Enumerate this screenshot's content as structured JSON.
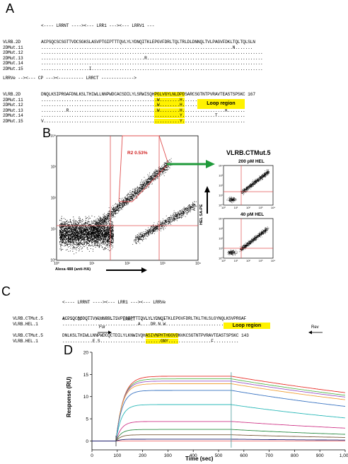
{
  "panelA": {
    "label": "A",
    "header1": "<---- LRRNT ----><--- LRR1 ---><--- LRRV1 ---",
    "block1": [
      {
        "name": "VLRB.2D",
        "seq": "ACPSQCSCSGTTVDCSGKSLASVPTGIPTTTQVLYLYDNQITKLEPGVFDRLTQLTRLDLDNNQLTVLPAGVFDKLTQLTQLSLN"
      },
      {
        "name": "2DMut.11",
        "seq": "............................................................................N......."
      },
      {
        "name": "2DMut.12",
        "seq": "........................................................................................"
      },
      {
        "name": "2DMut.13",
        "seq": ".........................................R.............................................."
      },
      {
        "name": "2DMut.14",
        "seq": "........................................................................................"
      },
      {
        "name": "2DMut.15",
        "seq": "...................I...................................................................."
      }
    ],
    "header2": "LRRVe --><--- CP ---><---------- LRRCT ------------->",
    "block2": [
      {
        "name": "VLRB.2D",
        "pre": "DNQLKSIPRGAFDNLKSLTHIWLLNNPWDCACSDILYLSRWISQH",
        "loop": "PGLVGYLNLDPD",
        "post": "SARCSGTNTPVRAVTEASTSPSKC 167"
      },
      {
        "name": "2DMut.11",
        "pre": ".............................................",
        "loop": ".W........H.",
        "post": "........................"
      },
      {
        "name": "2DMut.12",
        "pre": ".............................................",
        "loop": ".W........H.",
        "post": "........................"
      },
      {
        "name": "2DMut.13",
        "pre": "..........R..................................",
        "loop": ".W........H.",
        "post": "................K......."
      },
      {
        "name": "2DMut.14",
        "pre": ".............................................",
        "loop": "..........Y.",
        "post": "............T..........."
      },
      {
        "name": "2DMut.15",
        "pre": "V............................................",
        "loop": "..........Y.",
        "post": "........................"
      }
    ],
    "loop_label": "Loop region"
  },
  "panelB": {
    "label": "B",
    "gate_label": "R2 0.53%",
    "xlabel": "Alexa 488 (anti-HA)",
    "ylabel": "HEL SA-PE",
    "clone_title": "VLRB.CTMut.5",
    "sub1_title": "200 pM HEL",
    "sub2_title": "40 pM HEL",
    "main_ticks": [
      "10⁰",
      "10¹",
      "10²",
      "10³",
      "10⁴"
    ],
    "sub_ticks": [
      "10⁰",
      "10¹",
      "10²",
      "10³",
      "10⁴"
    ]
  },
  "panelC": {
    "label": "C",
    "header1": "<---- LRRNT ----><--- LRR1 ---><--- LRRVe",
    "row1": [
      {
        "name": "VLRB.CTMut.5",
        "seq": "ACPSQCSCDQTTVYCHNRRLTSVPTGIPTTTQVLYLYDNQITKLEPGVFDRLTKLTHLSLGYNQLKSVPRGAF"
      },
      {
        "name": "VLRB.HEL.1",
        "seq": "..............................A....DR.N.W............................"
      }
    ],
    "header2": "<---- CP ----><-------- LRRCT ---------->",
    "row2": [
      {
        "name": "VLRB.CTMut.5",
        "pre": "DNLKSLTHIWLLNNPWDCQCTDILYLKNWIVQH",
        "loop": "ASIVNPHTHGGVD",
        "post": "NVKCSGTNTPVRAVTEASTSPSKC 143"
      },
      {
        "name": "VLRB.HEL.1",
        "pre": "............E.S..................",
        "loop": "......GNY....",
        "post": ".............F.........."
      }
    ],
    "loop_label": "Loop region",
    "for_label": "For",
    "rev_label": "Rev"
  },
  "panelD": {
    "label": "D",
    "chart_data": {
      "type": "line",
      "title": "",
      "xlabel": "Time (sec)",
      "ylabel": "Response (RU)",
      "xlim": [
        0,
        1000
      ],
      "ylim": [
        -2,
        20
      ],
      "xticks": [
        0,
        100,
        200,
        300,
        400,
        500,
        600,
        700,
        800,
        900,
        1000
      ],
      "xtick_labels": [
        "0",
        "100",
        "200",
        "300",
        "400",
        "500",
        "600",
        "700",
        "800",
        "900",
        "1,000"
      ],
      "yticks": [
        0,
        5,
        10,
        15,
        20
      ],
      "injection_start": 95,
      "injection_end": 550,
      "series": [
        {
          "color": "#e8302a",
          "plateau": 14.6,
          "end": 10.9
        },
        {
          "color": "#55b84b",
          "plateau": 14.0,
          "end": 10.3
        },
        {
          "color": "#9a56c8",
          "plateau": 13.5,
          "end": 9.9
        },
        {
          "color": "#f0a23a",
          "plateau": 12.9,
          "end": 9.3
        },
        {
          "color": "#3a74c2",
          "plateau": 11.4,
          "end": 7.8
        },
        {
          "color": "#2ab8b8",
          "plateau": 8.2,
          "end": 5.2
        },
        {
          "color": "#d03a8a",
          "plateau": 4.4,
          "end": 2.9
        },
        {
          "color": "#2c8c44",
          "plateau": 2.6,
          "end": 1.5
        },
        {
          "color": "#7a5a3a",
          "plateau": 1.4,
          "end": 0.8
        },
        {
          "color": "#1a1a6a",
          "plateau": 0.4,
          "end": 0.2
        }
      ]
    }
  }
}
